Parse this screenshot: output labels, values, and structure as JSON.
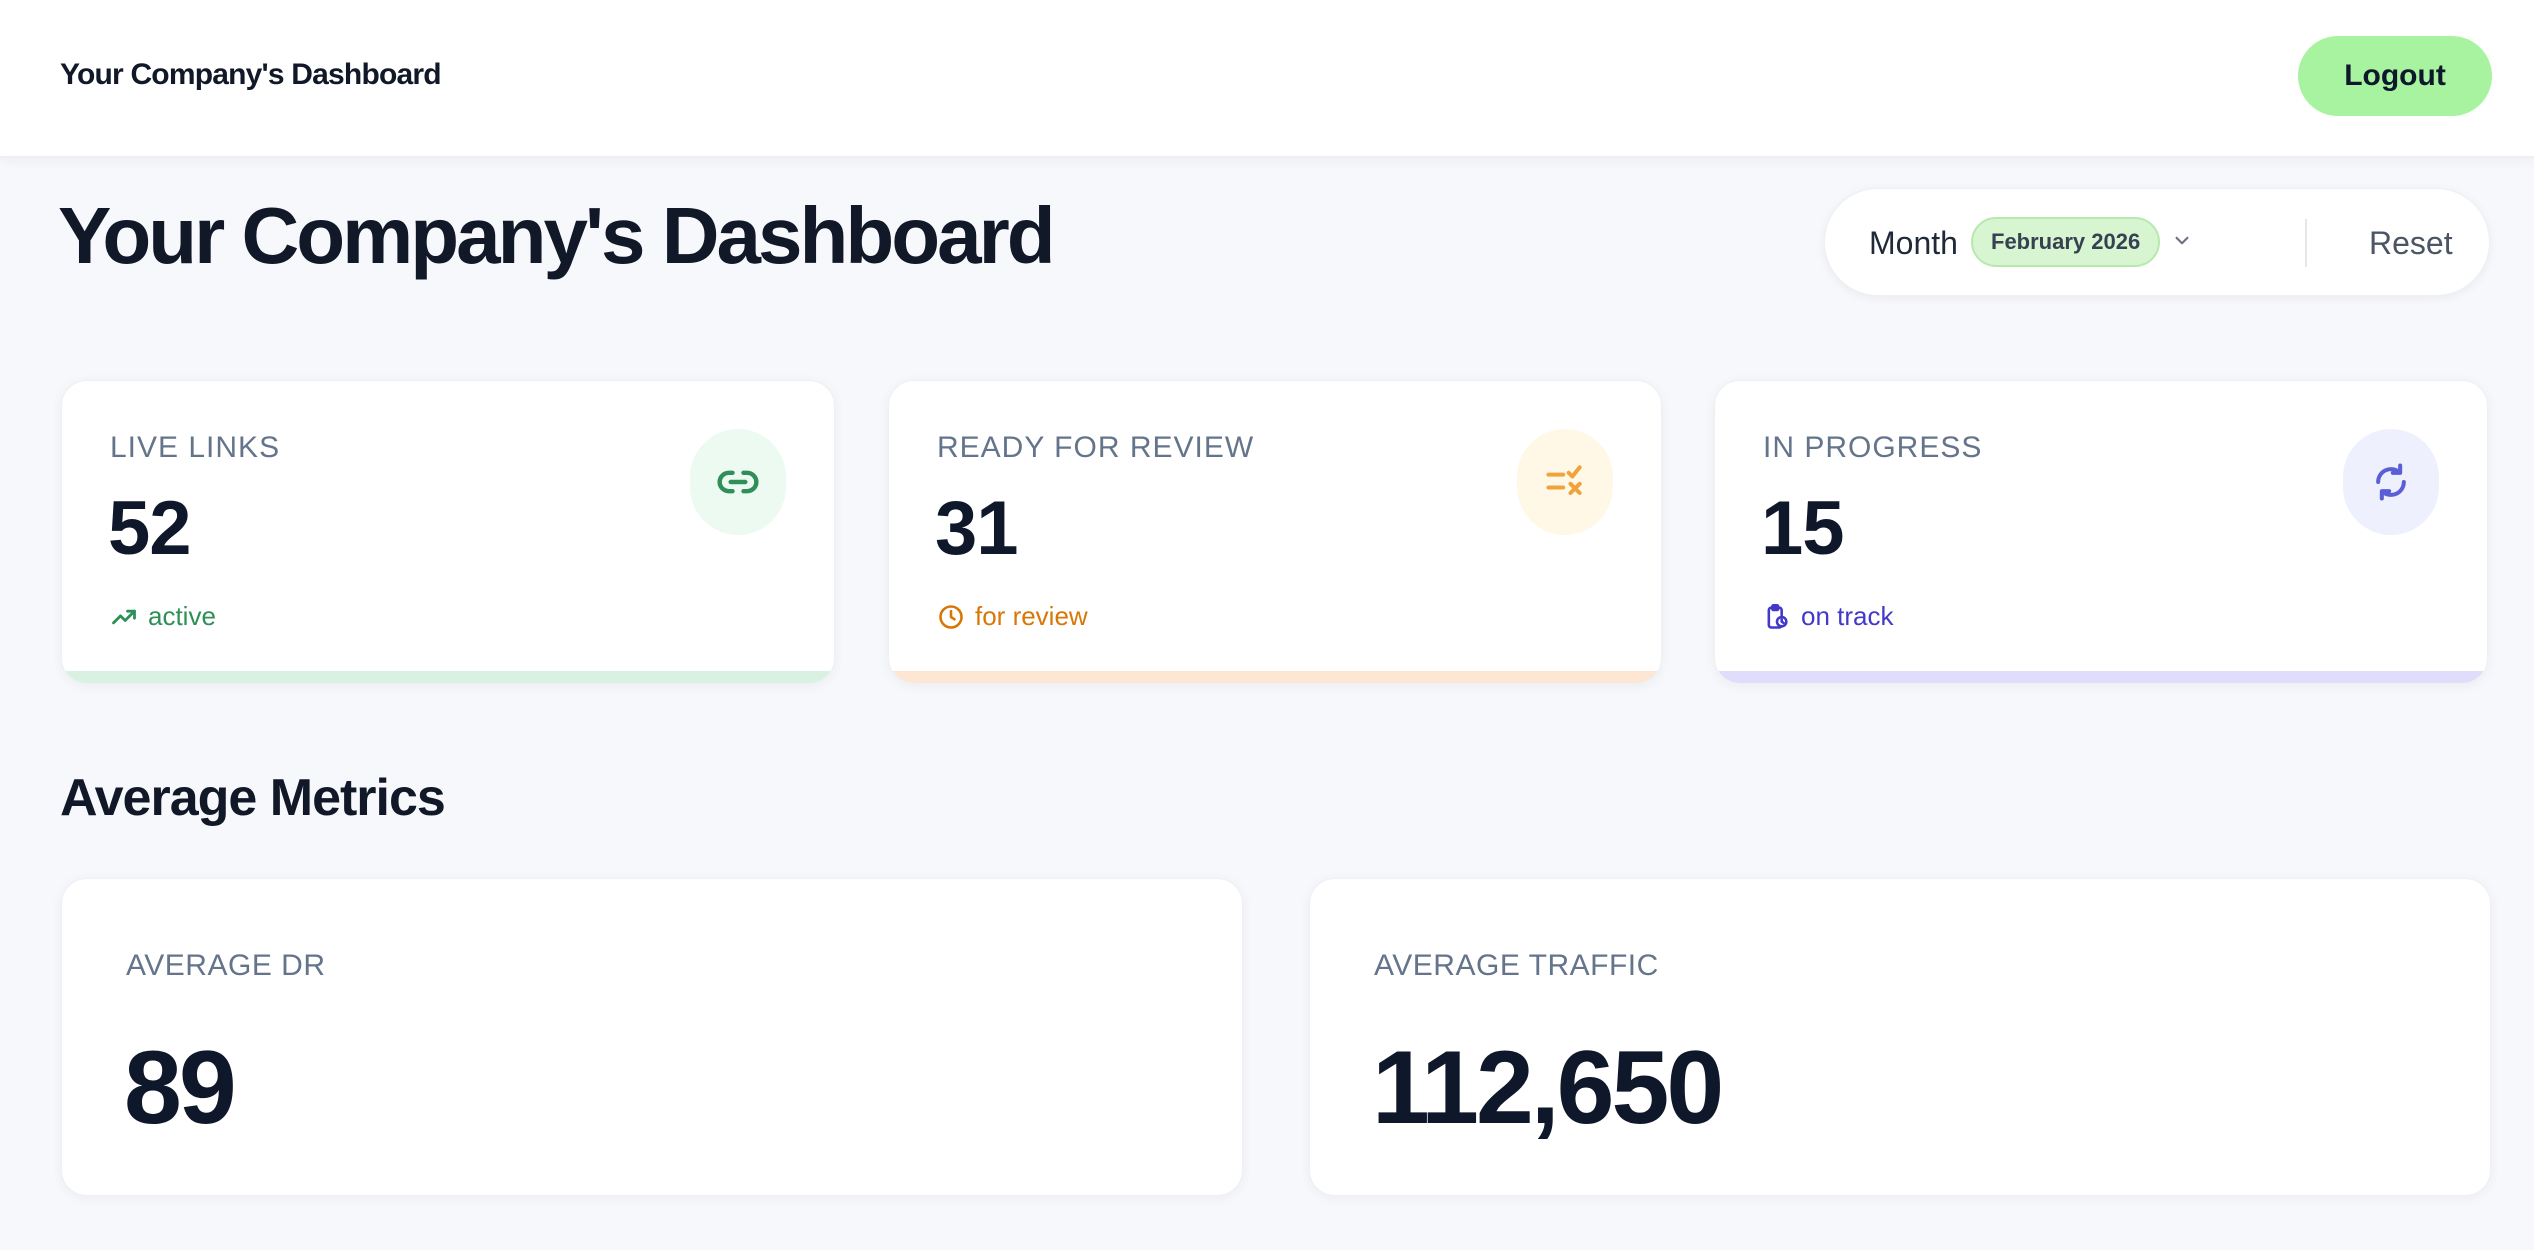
{
  "header": {
    "brand": "Your Company's Dashboard",
    "logout_label": "Logout"
  },
  "page": {
    "title": "Your Company's Dashboard"
  },
  "filter": {
    "label": "Month",
    "selected_month": "February 2026",
    "reset_label": "Reset"
  },
  "stats": [
    {
      "label": "LIVE LINKS",
      "value": "52",
      "sub": "active",
      "icon": "link-icon",
      "sub_icon": "trending-up-icon",
      "accent": "#2f8f57",
      "icon_bg": "#ecfaf1",
      "bar_color": "#d9f1e2"
    },
    {
      "label": "READY FOR REVIEW",
      "value": "31",
      "sub": "for review",
      "icon": "list-check-icon",
      "sub_icon": "clock-icon",
      "accent": "#d97706",
      "icon_bg": "#fff8e7",
      "bar_color": "#fde6d3"
    },
    {
      "label": "IN PROGRESS",
      "value": "15",
      "sub": "on track",
      "icon": "refresh-icon",
      "sub_icon": "clipboard-clock-icon",
      "accent": "#4338ca",
      "icon_bg": "#eef0fd",
      "bar_color": "#e0dcfb"
    }
  ],
  "metrics": {
    "section_title": "Average Metrics",
    "items": [
      {
        "label": "AVERAGE DR",
        "value": "89"
      },
      {
        "label": "AVERAGE TRAFFIC",
        "value": "112,650"
      }
    ]
  }
}
